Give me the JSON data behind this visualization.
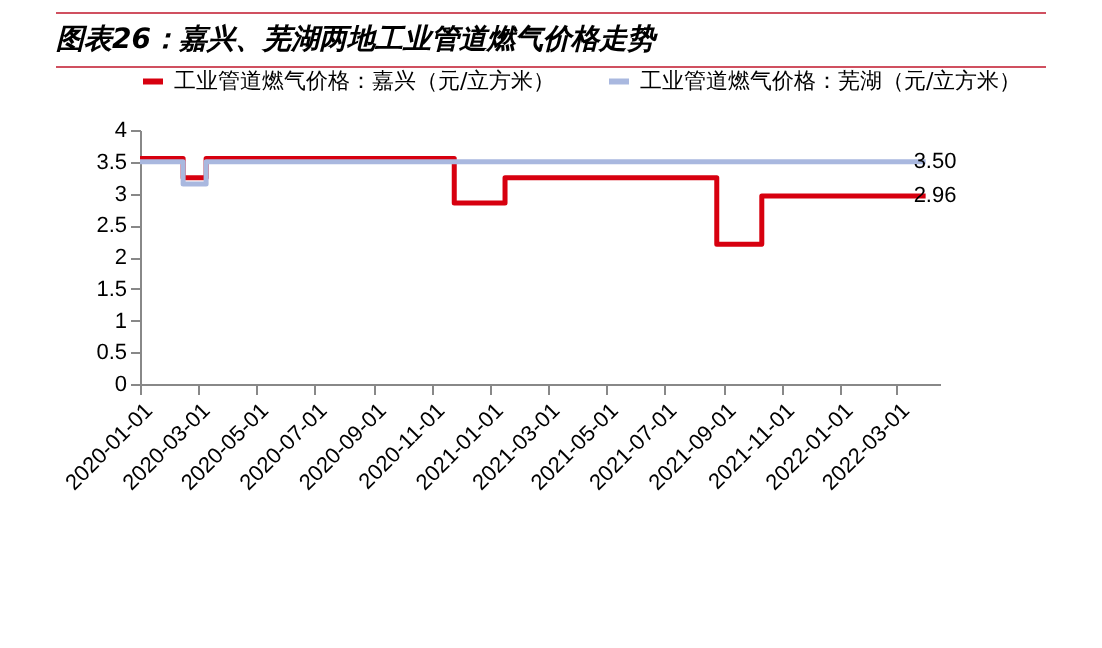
{
  "chart_data": {
    "type": "step",
    "title": "图表26：嘉兴、芜湖两地工业管道燃气价格走势",
    "series": [
      {
        "name": "工业管道燃气价格：嘉兴（元/立方米）",
        "color": "#d7000f",
        "x": [
          "2020-01-01",
          "2020-02-15",
          "2020-03-10",
          "2020-11-24",
          "2021-01-16",
          "2021-08-25",
          "2021-10-11",
          "2022-03-31"
        ],
        "values": [
          3.55,
          3.25,
          3.55,
          2.85,
          3.25,
          2.2,
          2.96,
          2.96
        ],
        "value_labels": [
          null,
          null,
          null,
          null,
          null,
          null,
          null,
          "2.96"
        ]
      },
      {
        "name": "工业管道燃气价格：芜湖（元/立方米）",
        "color": "#a9b8df",
        "x": [
          "2020-01-01",
          "2020-02-15",
          "2020-03-10",
          "2022-03-31"
        ],
        "values": [
          3.5,
          3.15,
          3.5,
          3.5
        ],
        "value_labels": [
          null,
          null,
          null,
          "3.50"
        ]
      }
    ],
    "xlim": [
      "2020-01-01",
      "2022-04-15"
    ],
    "xticks": [
      "2020-01-01",
      "2020-03-01",
      "2020-05-01",
      "2020-07-01",
      "2020-09-01",
      "2020-11-01",
      "2021-01-01",
      "2021-03-01",
      "2021-05-01",
      "2021-07-01",
      "2021-09-01",
      "2021-11-01",
      "2022-01-01",
      "2022-03-01"
    ],
    "ylim": [
      0,
      4
    ],
    "yticks": [
      0,
      0.5,
      1,
      1.5,
      2,
      2.5,
      3,
      3.5,
      4
    ],
    "grid": false,
    "legend": "top",
    "marker": "none",
    "line_style": "solid"
  }
}
